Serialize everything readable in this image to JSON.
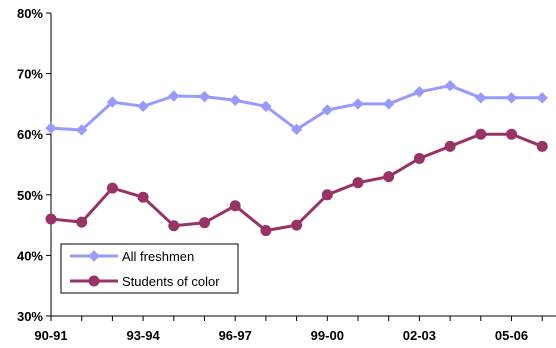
{
  "chart_data": {
    "type": "line",
    "title": "",
    "xlabel": "",
    "ylabel": "",
    "x": [
      "90-91",
      "91-92",
      "92-93",
      "93-94",
      "94-95",
      "95-96",
      "96-97",
      "97-98",
      "98-99",
      "99-00",
      "00-01",
      "01-02",
      "02-03",
      "03-04",
      "04-05",
      "05-06",
      "06-07"
    ],
    "x_tick_labels": [
      "90-91",
      "93-94",
      "96-97",
      "99-00",
      "02-03",
      "05-06"
    ],
    "ylim": [
      30,
      80
    ],
    "y_tick_values": [
      30,
      40,
      50,
      60,
      70,
      80
    ],
    "y_tick_labels": [
      "30%",
      "40%",
      "50%",
      "60%",
      "70%",
      "80%"
    ],
    "grid": false,
    "legend_position": "bottom-left",
    "series": [
      {
        "name": "All freshmen",
        "color": "#9999ff",
        "marker": "diamond",
        "values": [
          61,
          60.7,
          65.3,
          64.6,
          66.3,
          66.2,
          65.6,
          64.6,
          60.8,
          64,
          65,
          65,
          67,
          68,
          66,
          66,
          66
        ]
      },
      {
        "name": "Students of color",
        "color": "#993366",
        "marker": "circle",
        "values": [
          46,
          45.5,
          51.1,
          49.6,
          44.9,
          45.4,
          48.2,
          44.1,
          45,
          50,
          52,
          53,
          56,
          58,
          60,
          60,
          58
        ]
      }
    ]
  }
}
